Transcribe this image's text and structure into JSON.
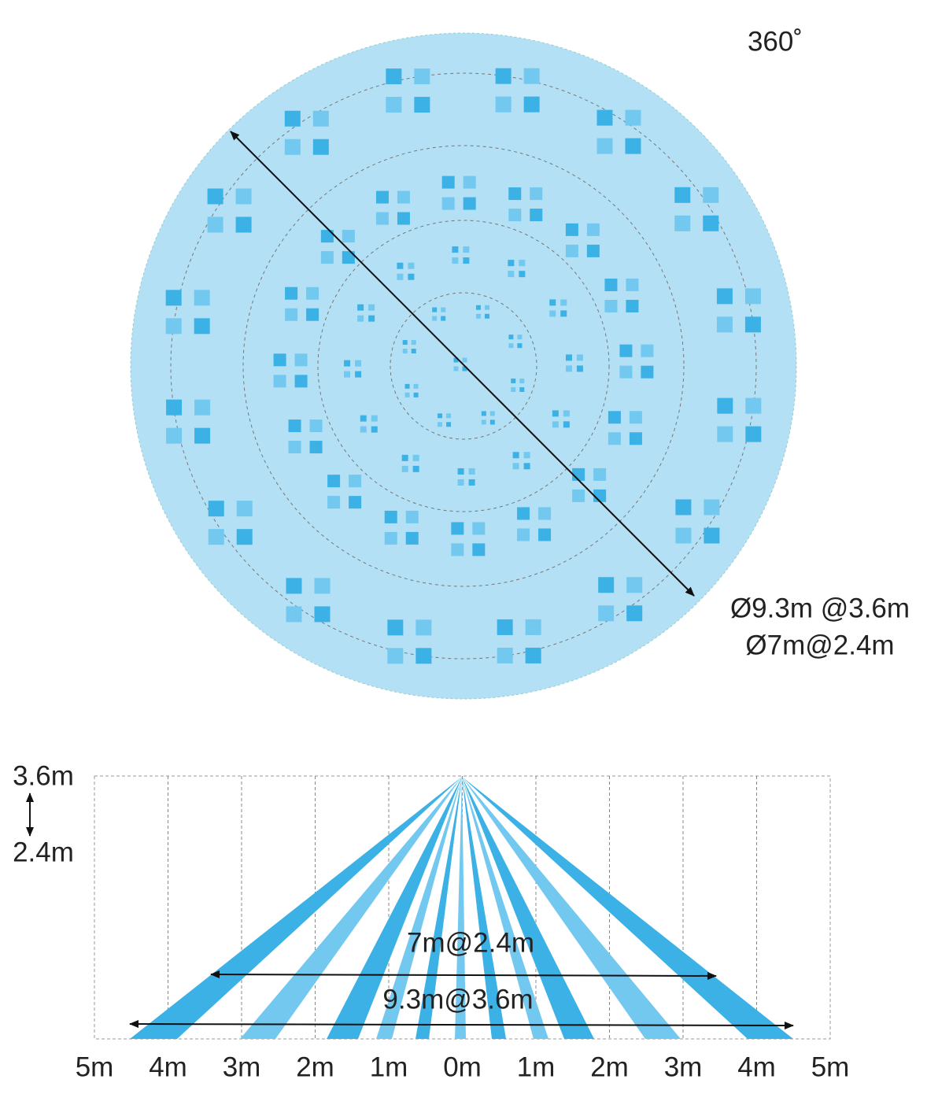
{
  "top": {
    "angle_label": "360˚",
    "diameter_labels": [
      "Ø9.3m @3.6m",
      "Ø7m@2.4m"
    ]
  },
  "side": {
    "height_labels": [
      "3.6m",
      "2.4m"
    ],
    "range_labels": [
      "7m@2.4m",
      "9.3m@3.6m"
    ],
    "distance_labels": [
      "5m",
      "4m",
      "3m",
      "2m",
      "1m",
      "0m",
      "1m",
      "2m",
      "3m",
      "4m",
      "5m"
    ]
  }
}
